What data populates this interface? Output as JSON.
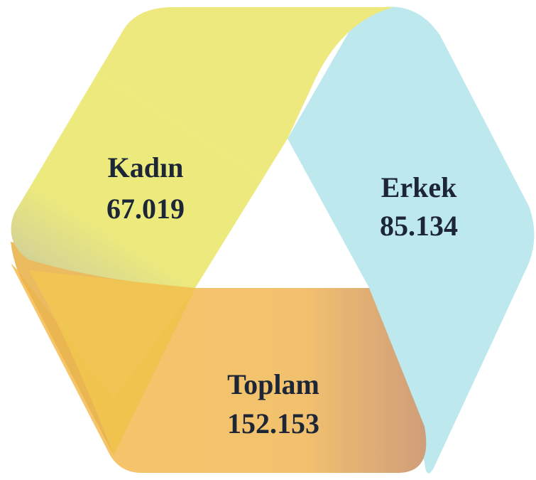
{
  "segments": [
    {
      "label": "Kadın",
      "value": "67.019"
    },
    {
      "label": "Erkek",
      "value": "85.134"
    },
    {
      "label": "Toplam",
      "value": "152.153"
    }
  ]
}
